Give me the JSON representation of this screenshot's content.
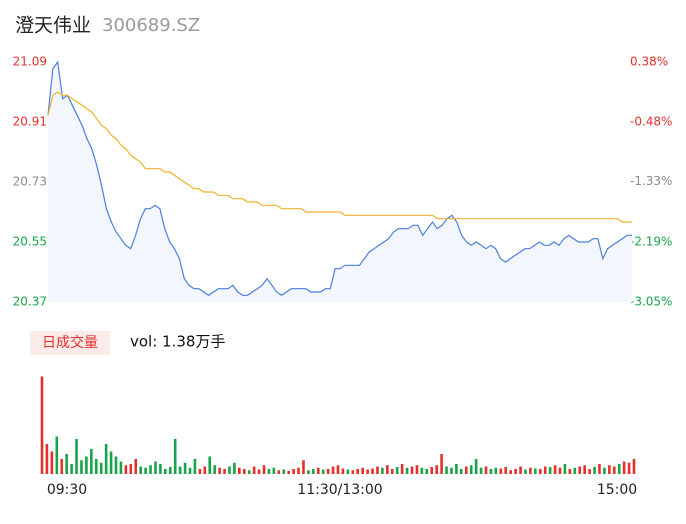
{
  "header": {
    "name": "澄天伟业",
    "code": "300689.SZ"
  },
  "chart_data": {
    "type": "line",
    "ylim": [
      20.37,
      21.09
    ],
    "yticks": [
      21.09,
      20.91,
      20.73,
      20.55,
      20.37
    ],
    "ytick_colors": [
      "#e5302c",
      "#e5302c",
      "#8c8c8c",
      "#1aa34a",
      "#1aa34a"
    ],
    "y2lim": [
      -3.05,
      0.38
    ],
    "y2ticks": [
      {
        "value": 0.38,
        "label": "0.38%"
      },
      {
        "value": -0.48,
        "label": "-0.48%"
      },
      {
        "value": -1.33,
        "label": "-1.33%"
      },
      {
        "value": -2.19,
        "label": "-2.19%"
      },
      {
        "value": -3.05,
        "label": "-3.05%"
      }
    ],
    "y2tick_colors": [
      "#e5302c",
      "#e5302c",
      "#8c8c8c",
      "#1aa34a",
      "#1aa34a"
    ],
    "series": [
      {
        "name": "price",
        "color": "#4a7fe0",
        "values": [
          20.93,
          21.07,
          21.09,
          20.98,
          20.99,
          20.96,
          20.93,
          20.9,
          20.86,
          20.83,
          20.78,
          20.72,
          20.65,
          20.61,
          20.58,
          20.56,
          20.54,
          20.53,
          20.57,
          20.62,
          20.65,
          20.65,
          20.66,
          20.65,
          20.59,
          20.55,
          20.53,
          20.5,
          20.44,
          20.42,
          20.41,
          20.41,
          20.4,
          20.39,
          20.4,
          20.41,
          20.41,
          20.41,
          20.42,
          20.4,
          20.39,
          20.39,
          20.4,
          20.41,
          20.42,
          20.44,
          20.42,
          20.4,
          20.39,
          20.4,
          20.41,
          20.41,
          20.41,
          20.41,
          20.4,
          20.4,
          20.4,
          20.41,
          20.41,
          20.47,
          20.47,
          20.48,
          20.48,
          20.48,
          20.48,
          20.5,
          20.52,
          20.53,
          20.54,
          20.55,
          20.56,
          20.58,
          20.59,
          20.59,
          20.59,
          20.6,
          20.6,
          20.57,
          20.59,
          20.61,
          20.59,
          20.6,
          20.62,
          20.63,
          20.61,
          20.57,
          20.55,
          20.54,
          20.55,
          20.54,
          20.53,
          20.54,
          20.53,
          20.5,
          20.49,
          20.5,
          20.51,
          20.52,
          20.53,
          20.53,
          20.54,
          20.55,
          20.54,
          20.54,
          20.55,
          20.54,
          20.56,
          20.57,
          20.56,
          20.55,
          20.55,
          20.55,
          20.56,
          20.56,
          20.5,
          20.53,
          20.54,
          20.55,
          20.56,
          20.57,
          20.57
        ]
      },
      {
        "name": "average",
        "color": "#f0b030",
        "values": [
          20.93,
          20.99,
          21.0,
          20.99,
          20.99,
          20.98,
          20.97,
          20.96,
          20.95,
          20.94,
          20.92,
          20.9,
          20.89,
          20.87,
          20.86,
          20.84,
          20.83,
          20.81,
          20.8,
          20.79,
          20.77,
          20.77,
          20.77,
          20.77,
          20.76,
          20.76,
          20.75,
          20.74,
          20.73,
          20.72,
          20.71,
          20.71,
          20.7,
          20.7,
          20.7,
          20.69,
          20.69,
          20.69,
          20.68,
          20.68,
          20.68,
          20.67,
          20.67,
          20.67,
          20.66,
          20.66,
          20.66,
          20.66,
          20.65,
          20.65,
          20.65,
          20.65,
          20.65,
          20.64,
          20.64,
          20.64,
          20.64,
          20.64,
          20.64,
          20.64,
          20.64,
          20.63,
          20.63,
          20.63,
          20.63,
          20.63,
          20.63,
          20.63,
          20.63,
          20.63,
          20.63,
          20.63,
          20.63,
          20.63,
          20.63,
          20.63,
          20.63,
          20.63,
          20.63,
          20.63,
          20.62,
          20.62,
          20.62,
          20.62,
          20.62,
          20.62,
          20.62,
          20.62,
          20.62,
          20.62,
          20.62,
          20.62,
          20.62,
          20.62,
          20.62,
          20.62,
          20.62,
          20.62,
          20.62,
          20.62,
          20.62,
          20.62,
          20.62,
          20.62,
          20.62,
          20.62,
          20.62,
          20.62,
          20.62,
          20.62,
          20.62,
          20.62,
          20.62,
          20.62,
          20.62,
          20.62,
          20.62,
          20.62,
          20.61,
          20.61,
          20.61
        ]
      }
    ],
    "volume": {
      "label": "日成交量",
      "text": "vol: 1.38万手",
      "ylim": [
        0,
        400
      ],
      "up_color": "#e5302c",
      "down_color": "#1aa34a",
      "values": [
        390,
        120,
        90,
        150,
        60,
        80,
        40,
        140,
        55,
        70,
        100,
        60,
        45,
        120,
        90,
        70,
        50,
        35,
        40,
        60,
        30,
        25,
        35,
        50,
        40,
        20,
        28,
        140,
        30,
        45,
        25,
        60,
        20,
        30,
        70,
        35,
        25,
        20,
        30,
        45,
        25,
        20,
        15,
        30,
        18,
        35,
        20,
        25,
        15,
        18,
        12,
        20,
        25,
        55,
        15,
        20,
        25,
        18,
        20,
        30,
        35,
        22,
        18,
        15,
        20,
        25,
        18,
        22,
        30,
        25,
        35,
        20,
        28,
        40,
        25,
        30,
        35,
        25,
        20,
        28,
        35,
        80,
        30,
        25,
        40,
        20,
        30,
        35,
        60,
        25,
        30,
        20,
        25,
        22,
        28,
        15,
        20,
        30,
        18,
        25,
        22,
        20,
        30,
        28,
        35,
        25,
        40,
        20,
        25,
        30,
        35,
        20,
        28,
        40,
        25,
        35,
        30,
        40,
        50,
        45,
        60
      ],
      "up": [
        true,
        true,
        true,
        false,
        true,
        false,
        false,
        false,
        false,
        false,
        false,
        false,
        false,
        false,
        false,
        false,
        false,
        true,
        true,
        true,
        false,
        false,
        false,
        false,
        false,
        false,
        false,
        false,
        false,
        false,
        false,
        false,
        true,
        true,
        false,
        false,
        true,
        true,
        false,
        false,
        true,
        true,
        false,
        true,
        true,
        true,
        false,
        false,
        true,
        false,
        true,
        true,
        true,
        true,
        false,
        false,
        true,
        false,
        true,
        true,
        true,
        true,
        false,
        true,
        true,
        true,
        true,
        true,
        true,
        false,
        true,
        true,
        false,
        true,
        false,
        true,
        true,
        false,
        false,
        true,
        true,
        true,
        false,
        false,
        false,
        false,
        true,
        false,
        false,
        false,
        true,
        false,
        false,
        true,
        true,
        true,
        true,
        true,
        false,
        true,
        false,
        true,
        true,
        false,
        true,
        true,
        false,
        true,
        false,
        true,
        true,
        true,
        false,
        true,
        false,
        true,
        true,
        false,
        true,
        true,
        true
      ]
    },
    "xlabels": [
      "09:30",
      "11:30/13:00",
      "15:00"
    ]
  }
}
